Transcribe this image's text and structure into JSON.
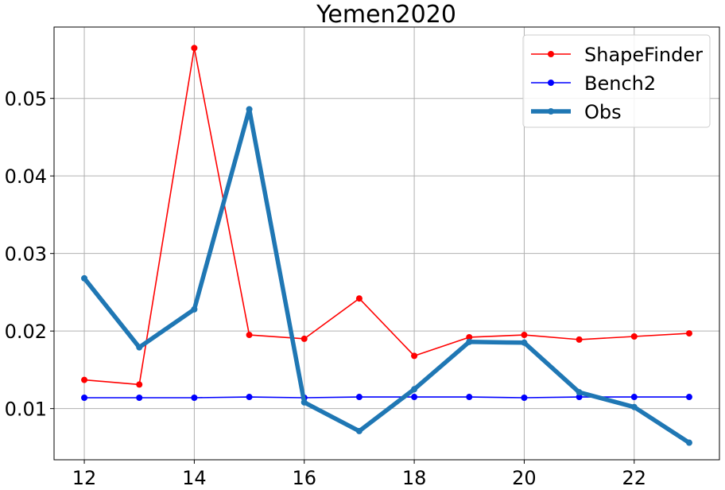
{
  "chart_data": {
    "type": "line",
    "title": "Yemen2020",
    "xlabel": "",
    "ylabel": "",
    "xlim": [
      11.45,
      23.55
    ],
    "ylim": [
      0.0034,
      0.0592
    ],
    "xticks": [
      12,
      14,
      16,
      18,
      20,
      22
    ],
    "yticks": [
      0.01,
      0.02,
      0.03,
      0.04,
      0.05
    ],
    "xtick_labels": [
      "12",
      "14",
      "16",
      "18",
      "20",
      "22"
    ],
    "ytick_labels": [
      "0.01",
      "0.02",
      "0.03",
      "0.04",
      "0.05"
    ],
    "grid": true,
    "legend_position": "top-right",
    "x": [
      12,
      13,
      14,
      15,
      16,
      17,
      18,
      19,
      20,
      21,
      22,
      23
    ],
    "series": [
      {
        "name": "ShapeFinder",
        "color": "#ff0000",
        "values": [
          0.0137,
          0.0131,
          0.0565,
          0.0195,
          0.019,
          0.0242,
          0.0168,
          0.0192,
          0.0195,
          0.0189,
          0.0193,
          0.0197
        ]
      },
      {
        "name": "Bench2",
        "color": "#0000ff",
        "values": [
          0.0114,
          0.0114,
          0.0114,
          0.0115,
          0.0114,
          0.0115,
          0.0115,
          0.0115,
          0.0114,
          0.0115,
          0.0115,
          0.0115
        ]
      },
      {
        "name": "Obs",
        "color": "#1f77b4",
        "values": [
          0.0268,
          0.0179,
          0.0228,
          0.0486,
          0.0108,
          0.0071,
          0.0125,
          0.0186,
          0.0185,
          0.0121,
          0.0102,
          0.0056
        ]
      }
    ]
  }
}
